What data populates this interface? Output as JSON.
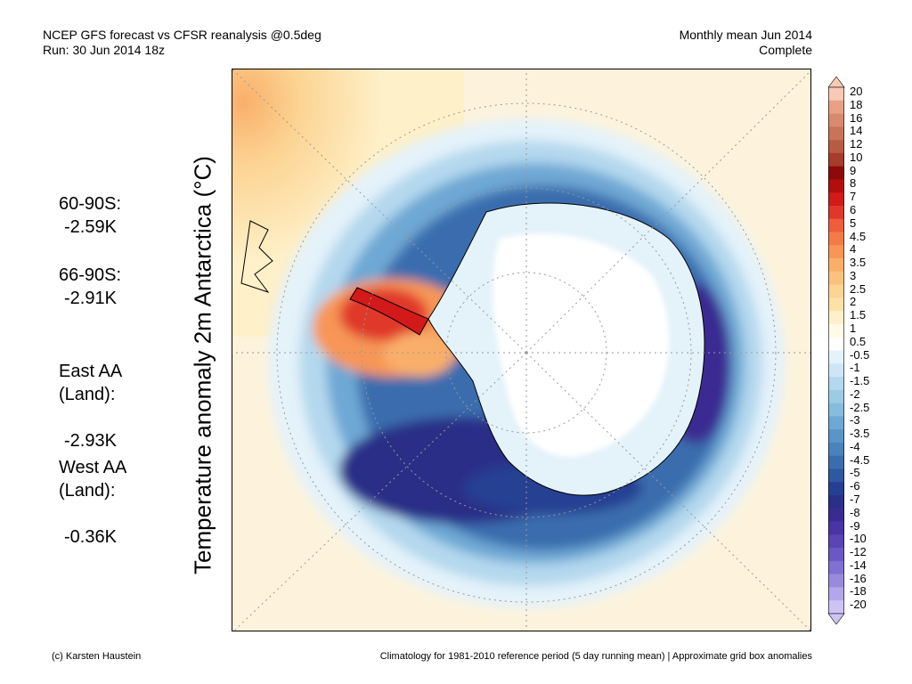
{
  "header": {
    "title_line1": "NCEP GFS forecast vs CFSR reanalysis @0.5deg",
    "title_line2": "Run: 30 Jun 2014 18z",
    "right_line1": "Monthly mean Jun 2014",
    "right_line2": "Complete"
  },
  "map": {
    "ylabel": "Temperature anomaly 2m Antarctica (°C)",
    "projection": "south-polar-stereographic",
    "graticule": "dotted"
  },
  "stats": [
    {
      "label": "60-90S:",
      "value": "-2.59K"
    },
    {
      "label": "66-90S:",
      "value": "-2.91K"
    },
    {
      "label": "East AA\n(Land):",
      "value": "-2.93K"
    },
    {
      "label": "West AA\n(Land):",
      "value": "-0.36K"
    }
  ],
  "colorbar": {
    "labels": [
      "20",
      "18",
      "16",
      "14",
      "12",
      "10",
      "9",
      "8",
      "7",
      "6",
      "5",
      "4.5",
      "4",
      "3.5",
      "3",
      "2.5",
      "2",
      "1.5",
      "1",
      "0.5",
      "-0.5",
      "-1",
      "-1.5",
      "-2",
      "-2.5",
      "-3",
      "-3.5",
      "-4",
      "-4.5",
      "-5",
      "-6",
      "-7",
      "-8",
      "-9",
      "-10",
      "-12",
      "-14",
      "-16",
      "-18",
      "-20"
    ],
    "colors": [
      "#f7c9b6",
      "#e8a184",
      "#d88a6e",
      "#c9735a",
      "#b85b44",
      "#a63c2c",
      "#8c0a0a",
      "#b40d0d",
      "#d21a1a",
      "#e0372a",
      "#ee5d3c",
      "#f37b48",
      "#f79656",
      "#f9af6a",
      "#fbc27e",
      "#fcd493",
      "#fde2a8",
      "#fef0c8",
      "#fffbe6",
      "#ffffff",
      "#e4f2fa",
      "#cde6f4",
      "#b4d8ee",
      "#9dcbe6",
      "#86bddf",
      "#6ea8d4",
      "#5a95c8",
      "#4a82bb",
      "#3b6dae",
      "#2e58a0",
      "#263f92",
      "#2c2f87",
      "#3a2b92",
      "#4a34a5",
      "#5a44b6",
      "#6c58c4",
      "#8070d2",
      "#9a8ade",
      "#b4a6ea",
      "#cec4f4"
    ]
  },
  "footer": {
    "left": "(c) Karsten Haustein",
    "right": "Climatology for 1981-2010 reference period (5 day running mean) | Approximate grid box anomalies"
  }
}
